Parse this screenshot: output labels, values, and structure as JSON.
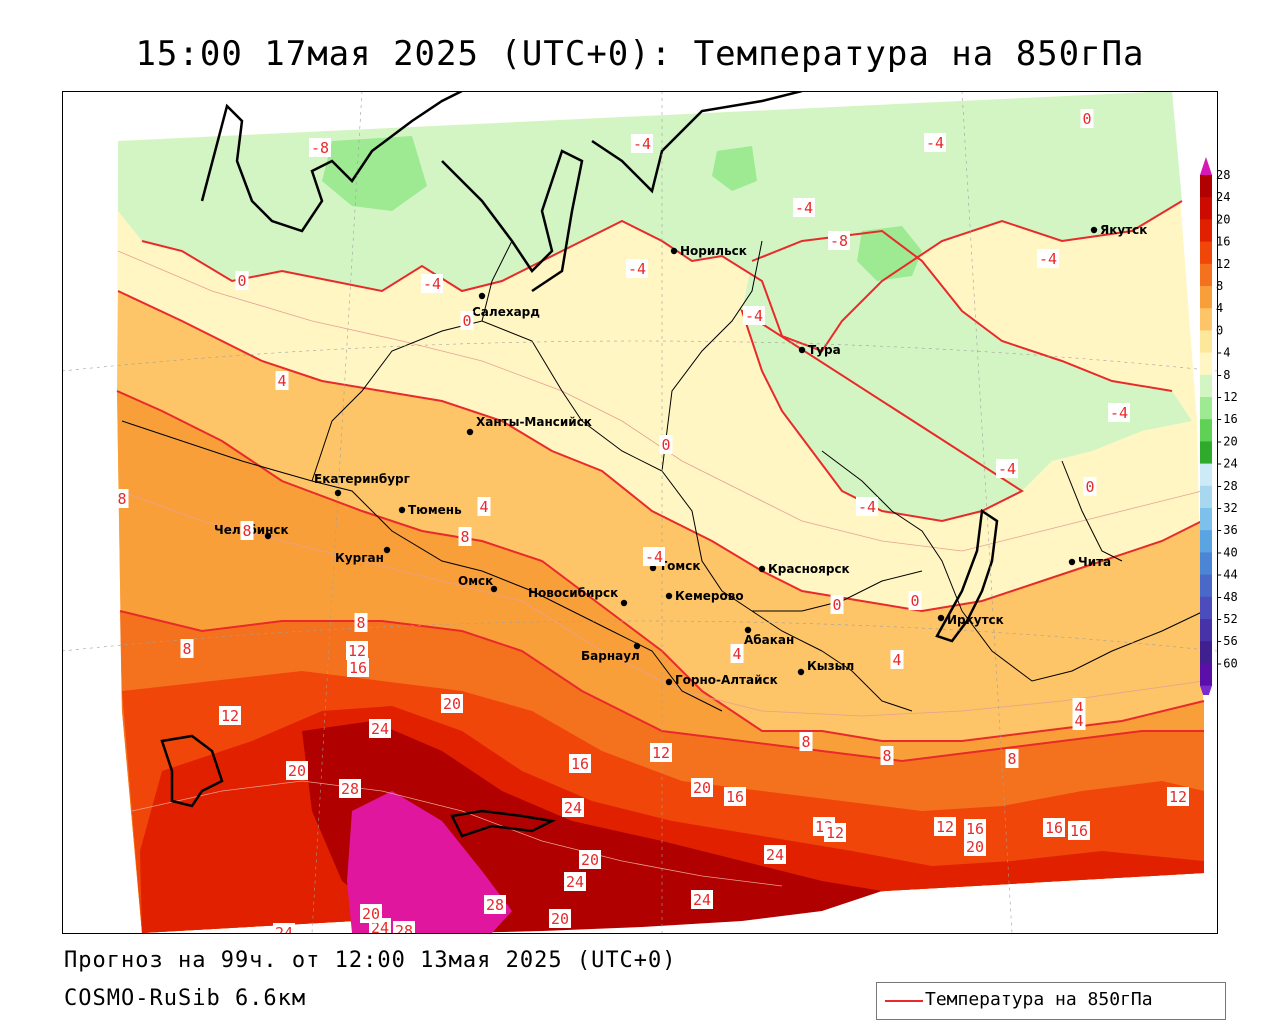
{
  "title": "15:00 17мая 2025 (UTC+0): Температура на 850гПа",
  "footer": {
    "forecast": "Прогноз на 99ч. от 12:00 13мая 2025 (UTC+0)",
    "model": "COSMO-RuSib 6.6км"
  },
  "legend": {
    "label": "Температура на 850гПа",
    "color": "#e82a2a"
  },
  "colorbar": {
    "levels": [
      "28",
      "24",
      "20",
      "16",
      "12",
      "8",
      "4",
      "0",
      "-4",
      "-8",
      "-12",
      "-16",
      "-20",
      "-24",
      "-28",
      "-32",
      "-36",
      "-40",
      "-44",
      "-48",
      "-52",
      "-56",
      "-60"
    ],
    "colors": [
      "#b00000",
      "#cc0a00",
      "#e12000",
      "#f0460a",
      "#f4721e",
      "#f99f3a",
      "#fdc468",
      "#fde79b",
      "#fff6c4",
      "#d3f5c4",
      "#9eea93",
      "#5fd155",
      "#2faa2a",
      "#ccebf7",
      "#a7d8f0",
      "#7cc0eb",
      "#5aa4e2",
      "#4a86d5",
      "#4a68c8",
      "#4c4cbc",
      "#4832a8",
      "#40208f",
      "#5a10a8"
    ],
    "top_arrow_color": "#d817b4",
    "bottom_arrow_color": "#7a2bd0"
  },
  "cities": [
    {
      "name": "Якутск"
    },
    {
      "name": "Норильск"
    },
    {
      "name": "Салехард"
    },
    {
      "name": "Тура"
    },
    {
      "name": "Ханты-Мансийск"
    },
    {
      "name": "Екатеринбург"
    },
    {
      "name": "Тюмень"
    },
    {
      "name": "Челябинск"
    },
    {
      "name": "Курган"
    },
    {
      "name": "Омск"
    },
    {
      "name": "Новосибирск"
    },
    {
      "name": "Томск"
    },
    {
      "name": "Кемерово"
    },
    {
      "name": "Красноярск"
    },
    {
      "name": "Барнаул"
    },
    {
      "name": "Абакан"
    },
    {
      "name": "Горно-Алтайск"
    },
    {
      "name": "Кызыл"
    },
    {
      "name": "Иркутск"
    },
    {
      "name": "Чита"
    }
  ],
  "contour_labels": [
    "-8",
    "-4",
    "-4",
    "0",
    "-4",
    "-4",
    "0",
    "-8",
    "-4",
    "-4",
    "-4",
    "-4",
    "0",
    "4",
    "0",
    "-4",
    "-4",
    "-4",
    "0",
    "4",
    "8",
    "8",
    "8",
    "8",
    "0",
    "0",
    "4",
    "12",
    "16",
    "4",
    "4",
    "8",
    "12",
    "20",
    "24",
    "28",
    "24",
    "16",
    "12",
    "8",
    "20",
    "16",
    "20",
    "24",
    "20",
    "24",
    "28",
    "20",
    "24",
    "16",
    "16",
    "12",
    "12",
    "16",
    "20",
    "12",
    "8",
    "12",
    "8",
    "4",
    "24",
    "20",
    "28",
    "24"
  ]
}
